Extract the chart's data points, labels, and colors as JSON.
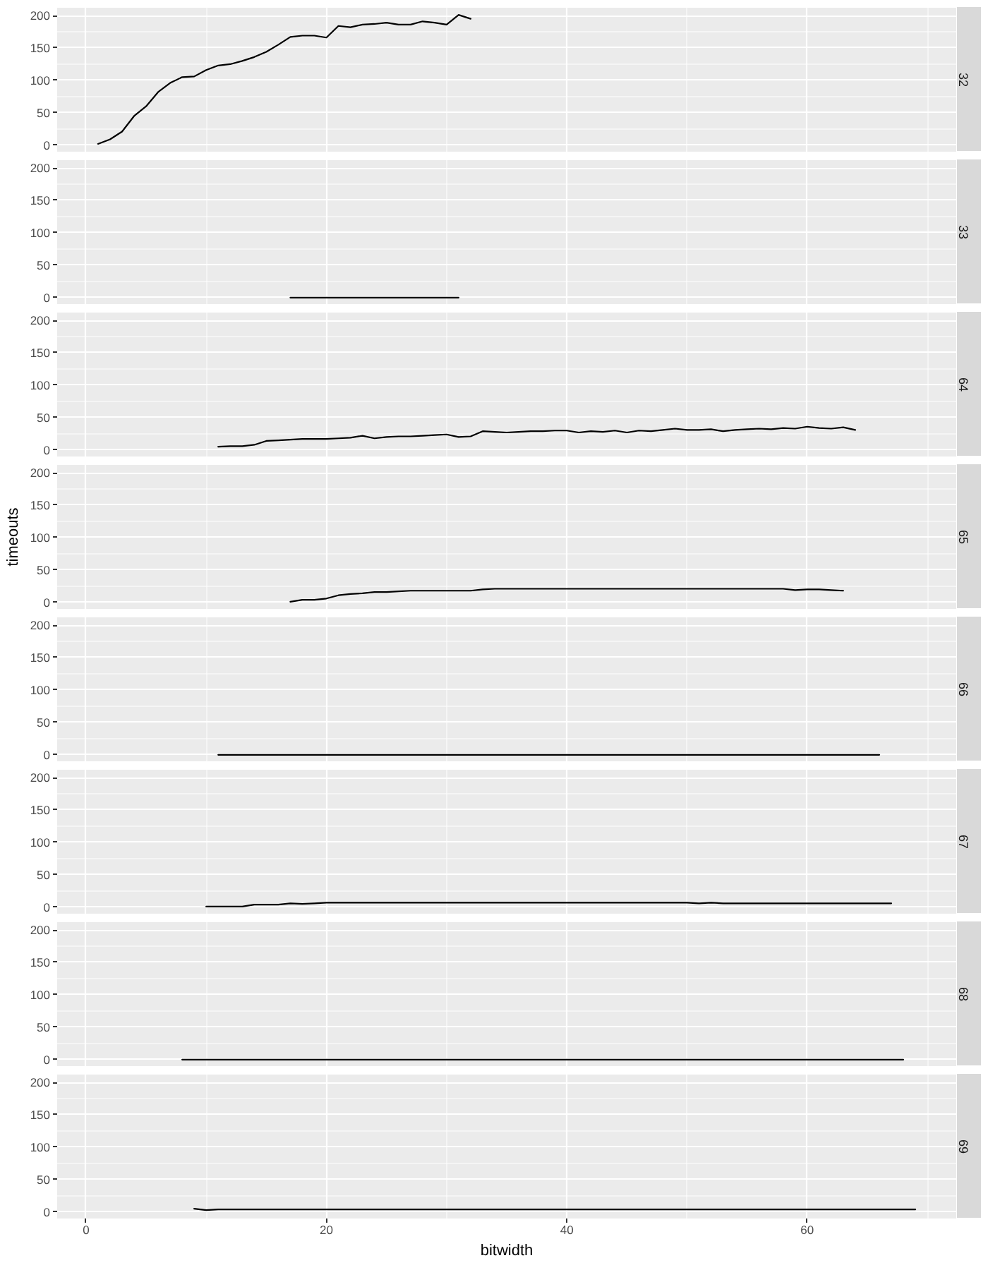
{
  "chart_data": [
    {
      "type": "line",
      "title": "32",
      "x": [
        1,
        2,
        3,
        4,
        5,
        6,
        7,
        8,
        9,
        10,
        11,
        12,
        13,
        14,
        15,
        16,
        17,
        18,
        19,
        20,
        21,
        22,
        23,
        24,
        25,
        26,
        27,
        28,
        29,
        30,
        31,
        32
      ],
      "values": [
        2,
        9,
        21,
        45,
        60,
        82,
        96,
        105,
        106,
        116,
        123,
        125,
        130,
        136,
        144,
        155,
        167,
        169,
        169,
        166,
        184,
        182,
        186,
        187,
        189,
        186,
        186,
        191,
        189,
        186,
        201,
        195
      ],
      "color": "#000000",
      "xlim": [
        -2.4,
        72.4
      ],
      "ylim": [
        -10,
        212
      ],
      "xticks": [
        0,
        20,
        40,
        60
      ],
      "yticks": [
        0,
        50,
        100,
        150,
        200
      ],
      "grid": true,
      "tick_labels": "y"
    },
    {
      "type": "line",
      "title": "33",
      "x": [
        17,
        18,
        19,
        20,
        21,
        22,
        23,
        24,
        25,
        26,
        27,
        28,
        29,
        30,
        31
      ],
      "values": [
        0,
        0,
        0,
        0,
        0,
        0,
        0,
        0,
        0,
        0,
        0,
        0,
        0,
        0,
        0
      ],
      "color": "#000000",
      "xlim": [
        -2.4,
        72.4
      ],
      "ylim": [
        -10,
        212
      ],
      "xticks": [
        0,
        20,
        40,
        60
      ],
      "yticks": [
        0,
        50,
        100,
        150,
        200
      ],
      "grid": true,
      "tick_labels": "y"
    },
    {
      "type": "line",
      "title": "64",
      "x": [
        11,
        12,
        13,
        14,
        15,
        16,
        17,
        18,
        19,
        20,
        21,
        22,
        23,
        24,
        25,
        26,
        27,
        28,
        29,
        30,
        31,
        32,
        33,
        34,
        35,
        36,
        37,
        38,
        39,
        40,
        41,
        42,
        43,
        44,
        45,
        46,
        47,
        48,
        49,
        50,
        51,
        52,
        53,
        54,
        55,
        56,
        57,
        58,
        59,
        60,
        61,
        62,
        63,
        64
      ],
      "values": [
        5,
        6,
        6,
        8,
        14,
        15,
        16,
        17,
        17,
        17,
        18,
        19,
        22,
        18,
        20,
        21,
        21,
        22,
        23,
        24,
        20,
        21,
        29,
        28,
        27,
        28,
        29,
        29,
        30,
        30,
        27,
        29,
        28,
        30,
        27,
        30,
        29,
        31,
        33,
        31,
        31,
        32,
        29,
        31,
        32,
        33,
        32,
        34,
        33,
        36,
        34,
        33,
        35,
        31
      ],
      "color": "#000000",
      "xlim": [
        -2.4,
        72.4
      ],
      "ylim": [
        -10,
        212
      ],
      "xticks": [
        0,
        20,
        40,
        60
      ],
      "yticks": [
        0,
        50,
        100,
        150,
        200
      ],
      "grid": true,
      "tick_labels": "y"
    },
    {
      "type": "line",
      "title": "65",
      "ylabel": "timeouts",
      "x": [
        17,
        18,
        19,
        20,
        21,
        22,
        23,
        24,
        25,
        26,
        27,
        28,
        29,
        30,
        31,
        32,
        33,
        34,
        35,
        36,
        37,
        38,
        39,
        40,
        41,
        42,
        43,
        44,
        45,
        46,
        47,
        48,
        49,
        50,
        51,
        52,
        53,
        54,
        55,
        56,
        57,
        58,
        59,
        60,
        61,
        62,
        63
      ],
      "values": [
        1,
        4,
        4,
        6,
        11,
        13,
        14,
        16,
        16,
        17,
        18,
        18,
        18,
        18,
        18,
        18,
        20,
        21,
        21,
        21,
        21,
        21,
        21,
        21,
        21,
        21,
        21,
        21,
        21,
        21,
        21,
        21,
        21,
        21,
        21,
        21,
        21,
        21,
        21,
        21,
        21,
        21,
        19,
        20,
        20,
        19,
        18
      ],
      "color": "#000000",
      "xlim": [
        -2.4,
        72.4
      ],
      "ylim": [
        -10,
        212
      ],
      "xticks": [
        0,
        20,
        40,
        60
      ],
      "yticks": [
        0,
        50,
        100,
        150,
        200
      ],
      "grid": true,
      "tick_labels": "y"
    },
    {
      "type": "line",
      "title": "66",
      "x": [
        11,
        12,
        13,
        14,
        15,
        16,
        17,
        18,
        19,
        20,
        21,
        22,
        23,
        24,
        25,
        26,
        27,
        28,
        29,
        30,
        31,
        32,
        33,
        34,
        35,
        36,
        37,
        38,
        39,
        40,
        41,
        42,
        43,
        44,
        45,
        46,
        47,
        48,
        49,
        50,
        51,
        52,
        53,
        54,
        55,
        56,
        57,
        58,
        59,
        60,
        61,
        62,
        63,
        64,
        65,
        66
      ],
      "values": [
        0,
        0,
        0,
        0,
        0,
        0,
        0,
        0,
        0,
        0,
        0,
        0,
        0,
        0,
        0,
        0,
        0,
        0,
        0,
        0,
        0,
        0,
        0,
        0,
        0,
        0,
        0,
        0,
        0,
        0,
        0,
        0,
        0,
        0,
        0,
        0,
        0,
        0,
        0,
        0,
        0,
        0,
        0,
        0,
        0,
        0,
        0,
        0,
        0,
        0,
        0,
        0,
        0,
        0,
        0,
        0
      ],
      "color": "#000000",
      "xlim": [
        -2.4,
        72.4
      ],
      "ylim": [
        -10,
        212
      ],
      "xticks": [
        0,
        20,
        40,
        60
      ],
      "yticks": [
        0,
        50,
        100,
        150,
        200
      ],
      "grid": true,
      "tick_labels": "y"
    },
    {
      "type": "line",
      "title": "67",
      "x": [
        10,
        11,
        12,
        13,
        14,
        15,
        16,
        17,
        18,
        19,
        20,
        21,
        22,
        23,
        24,
        25,
        26,
        27,
        28,
        29,
        30,
        31,
        32,
        33,
        34,
        35,
        36,
        37,
        38,
        39,
        40,
        41,
        42,
        43,
        44,
        45,
        46,
        47,
        48,
        49,
        50,
        51,
        52,
        53,
        54,
        55,
        56,
        57,
        58,
        59,
        60,
        61,
        62,
        63,
        64,
        65,
        66,
        67
      ],
      "values": [
        1,
        1,
        1,
        1,
        4,
        4,
        4,
        6,
        5,
        6,
        7,
        7,
        7,
        7,
        7,
        7,
        7,
        7,
        7,
        7,
        7,
        7,
        7,
        7,
        7,
        7,
        7,
        7,
        7,
        7,
        7,
        7,
        7,
        7,
        7,
        7,
        7,
        7,
        7,
        7,
        7,
        6,
        7,
        6,
        6,
        6,
        6,
        6,
        6,
        6,
        6,
        6,
        6,
        6,
        6,
        6,
        6,
        6
      ],
      "color": "#000000",
      "xlim": [
        -2.4,
        72.4
      ],
      "ylim": [
        -10,
        212
      ],
      "xticks": [
        0,
        20,
        40,
        60
      ],
      "yticks": [
        0,
        50,
        100,
        150,
        200
      ],
      "grid": true,
      "tick_labels": "y"
    },
    {
      "type": "line",
      "title": "68",
      "x": [
        8,
        9,
        10,
        11,
        12,
        13,
        14,
        15,
        16,
        17,
        18,
        19,
        20,
        21,
        22,
        23,
        24,
        25,
        26,
        27,
        28,
        29,
        30,
        31,
        32,
        33,
        34,
        35,
        36,
        37,
        38,
        39,
        40,
        41,
        42,
        43,
        44,
        45,
        46,
        47,
        48,
        49,
        50,
        51,
        52,
        53,
        54,
        55,
        56,
        57,
        58,
        59,
        60,
        61,
        62,
        63,
        64,
        65,
        66,
        67,
        68
      ],
      "values": [
        0,
        0,
        0,
        0,
        0,
        0,
        0,
        0,
        0,
        0,
        0,
        0,
        0,
        0,
        0,
        0,
        0,
        0,
        0,
        0,
        0,
        0,
        0,
        0,
        0,
        0,
        0,
        0,
        0,
        0,
        0,
        0,
        0,
        0,
        0,
        0,
        0,
        0,
        0,
        0,
        0,
        0,
        0,
        0,
        0,
        0,
        0,
        0,
        0,
        0,
        0,
        0,
        0,
        0,
        0,
        0,
        0,
        0,
        0,
        0,
        0
      ],
      "color": "#000000",
      "xlim": [
        -2.4,
        72.4
      ],
      "ylim": [
        -10,
        212
      ],
      "xticks": [
        0,
        20,
        40,
        60
      ],
      "yticks": [
        0,
        50,
        100,
        150,
        200
      ],
      "grid": true,
      "tick_labels": "y"
    },
    {
      "type": "line",
      "title": "69",
      "xlabel": "bitwidth",
      "x": [
        9,
        10,
        11,
        12,
        13,
        14,
        15,
        16,
        17,
        18,
        19,
        20,
        21,
        22,
        23,
        24,
        25,
        26,
        27,
        28,
        29,
        30,
        31,
        32,
        33,
        34,
        35,
        36,
        37,
        38,
        39,
        40,
        41,
        42,
        43,
        44,
        45,
        46,
        47,
        48,
        49,
        50,
        51,
        52,
        53,
        54,
        55,
        56,
        57,
        58,
        59,
        60,
        61,
        62,
        63,
        64,
        65,
        66,
        67,
        68,
        69
      ],
      "values": [
        5,
        3,
        4,
        4,
        4,
        4,
        4,
        4,
        4,
        4,
        4,
        4,
        4,
        4,
        4,
        4,
        4,
        4,
        4,
        4,
        4,
        4,
        4,
        4,
        4,
        4,
        4,
        4,
        4,
        4,
        4,
        4,
        4,
        4,
        4,
        4,
        4,
        4,
        4,
        4,
        4,
        4,
        4,
        4,
        4,
        4,
        4,
        4,
        4,
        4,
        4,
        4,
        4,
        4,
        4,
        4,
        4,
        4,
        4,
        4,
        4
      ],
      "color": "#000000",
      "xlim": [
        -2.4,
        72.4
      ],
      "ylim": [
        -10,
        212
      ],
      "xticks": [
        0,
        20,
        40,
        60
      ],
      "yticks": [
        0,
        50,
        100,
        150,
        200
      ],
      "grid": true
    }
  ]
}
